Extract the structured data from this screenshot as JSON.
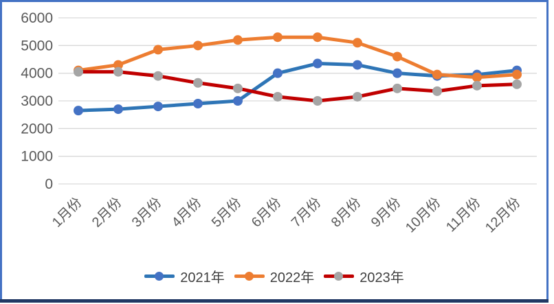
{
  "chart_data": {
    "type": "line",
    "title": "",
    "xlabel": "",
    "ylabel": "",
    "categories": [
      "1月份",
      "2月份",
      "3月份",
      "4月份",
      "5月份",
      "6月份",
      "7月份",
      "8月份",
      "9月份",
      "10月份",
      "11月份",
      "12月份"
    ],
    "series": [
      {
        "name": "2021年",
        "color": "#2E75B6",
        "marker_color": "#4472C4",
        "values": [
          2650,
          2700,
          2800,
          2900,
          3000,
          4000,
          4350,
          4300,
          4000,
          3900,
          3950,
          4100
        ]
      },
      {
        "name": "2022年",
        "color": "#ED7D31",
        "marker_color": "#ED7D31",
        "values": [
          4100,
          4300,
          4850,
          5000,
          5200,
          5300,
          5300,
          5100,
          4600,
          3950,
          3850,
          3950
        ]
      },
      {
        "name": "2023年",
        "color": "#C00000",
        "marker_color": "#A5A5A5",
        "values": [
          4050,
          4050,
          3900,
          3650,
          3450,
          3150,
          3000,
          3150,
          3450,
          3350,
          3550,
          3600
        ]
      }
    ],
    "ylim": [
      0,
      6000
    ],
    "ytick_step": 1000,
    "yticks": [
      "0",
      "1000",
      "2000",
      "3000",
      "4000",
      "5000",
      "6000"
    ],
    "grid": true,
    "legend_position": "bottom",
    "marker_style": "circle"
  },
  "colors": {
    "frame_border": "#4472C4",
    "bottom_bar": "#203864",
    "gridline": "#D9D9D9",
    "axis_text": "#595959",
    "legend_text": "#404040",
    "background": "#FFFFFF"
  }
}
